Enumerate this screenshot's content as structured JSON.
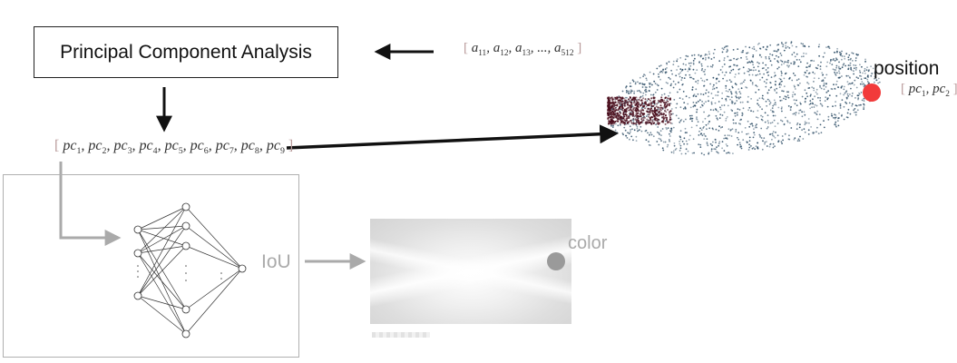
{
  "diagram": {
    "pca_box_label": "Principal Component Analysis",
    "input_vector": {
      "open": "[",
      "terms": [
        {
          "base": "a",
          "sub": "11"
        },
        {
          "base": "a",
          "sub": "12"
        },
        {
          "base": "a",
          "sub": "13"
        },
        {
          "base": "...",
          "sub": ""
        },
        {
          "base": "a",
          "sub": "512"
        }
      ],
      "close": "]"
    },
    "pc_vector": {
      "open": "[",
      "terms": [
        {
          "base": "pc",
          "sub": "1"
        },
        {
          "base": "pc",
          "sub": "2"
        },
        {
          "base": "pc",
          "sub": "3"
        },
        {
          "base": "pc",
          "sub": "4"
        },
        {
          "base": "pc",
          "sub": "5"
        },
        {
          "base": "pc",
          "sub": "6"
        },
        {
          "base": "pc",
          "sub": "7"
        },
        {
          "base": "pc",
          "sub": "8"
        },
        {
          "base": "pc",
          "sub": "9"
        }
      ],
      "close": "]"
    },
    "position_label": "position",
    "position_vector": {
      "open": "[",
      "terms": [
        {
          "base": "pc",
          "sub": "1"
        },
        {
          "base": "pc",
          "sub": "2"
        }
      ],
      "close": "]"
    },
    "iou_label": "IoU",
    "color_label": "color",
    "colors": {
      "main_arrow": "#111111",
      "faded_arrow": "#aaaaaa",
      "scatter_blue": "#2d4d66",
      "scatter_dark_red": "#4a0d1c",
      "position_dot": "#f23a3a",
      "color_dot": "#9a9a9a"
    }
  }
}
